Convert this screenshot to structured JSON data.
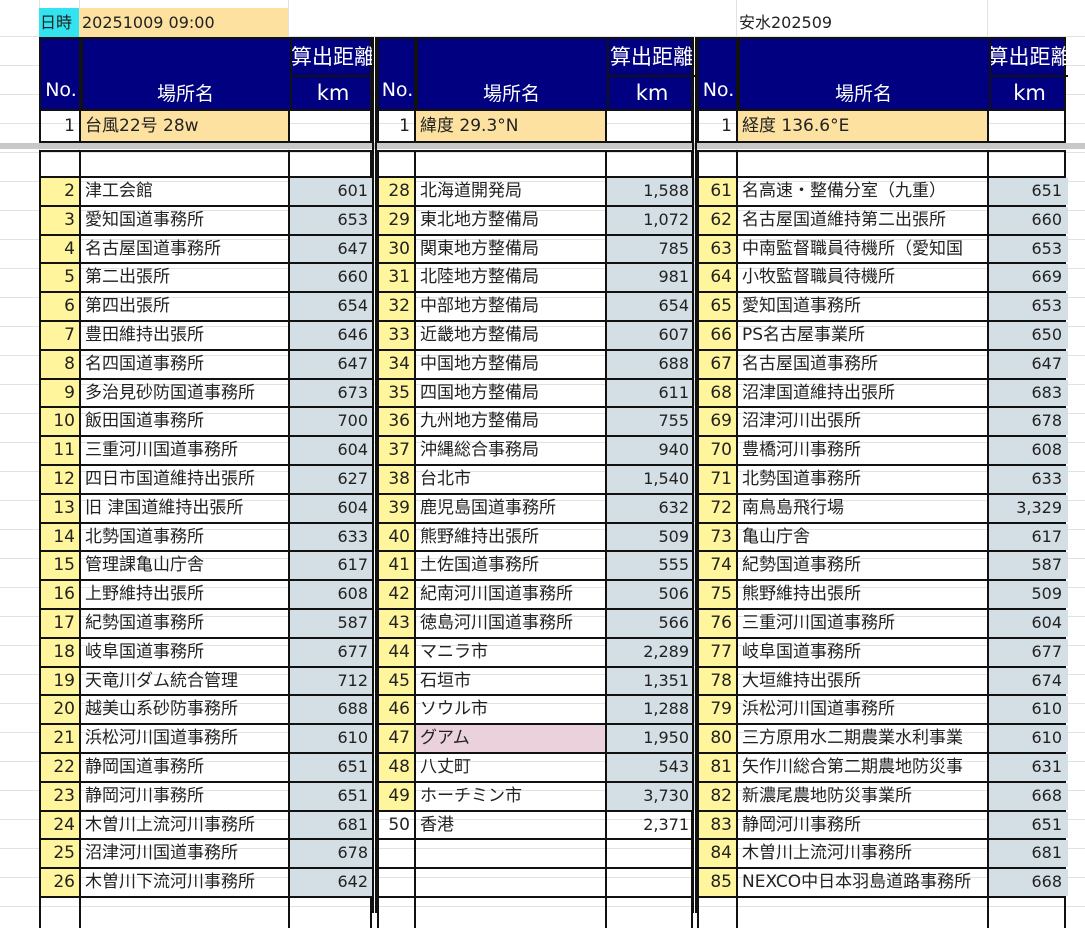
{
  "top": {
    "datetime_label": "日時",
    "datetime_value": "20251009  09:00",
    "note": "安水202509"
  },
  "header": {
    "no": "No.",
    "name": "場所名",
    "distance": "算出距離",
    "unit": "km"
  },
  "colors": {
    "header_bg": "#000080",
    "no_cell": "#fff59d",
    "km_cell": "#d3dee5",
    "info_cell": "#fce1a0",
    "highlight": "#ead1dc",
    "datetime_label_bg": "#33e3ef"
  },
  "blocks": [
    {
      "info": {
        "no": "1",
        "name": "台風22号 28w",
        "km": ""
      },
      "rows": [
        {
          "no": "2",
          "name": "津工会館",
          "km": "601"
        },
        {
          "no": "3",
          "name": "愛知国道事務所",
          "km": "653"
        },
        {
          "no": "4",
          "name": "名古屋国道事務所",
          "km": "647"
        },
        {
          "no": "5",
          "name": "第二出張所",
          "km": "660"
        },
        {
          "no": "6",
          "name": "第四出張所",
          "km": "654"
        },
        {
          "no": "7",
          "name": "豊田維持出張所",
          "km": "646"
        },
        {
          "no": "8",
          "name": "名四国道事務所",
          "km": "647"
        },
        {
          "no": "9",
          "name": "多治見砂防国道事務所",
          "km": "673"
        },
        {
          "no": "10",
          "name": "飯田国道事務所",
          "km": "700"
        },
        {
          "no": "11",
          "name": "三重河川国道事務所",
          "km": "604"
        },
        {
          "no": "12",
          "name": "四日市国道維持出張所",
          "km": "627"
        },
        {
          "no": "13",
          "name": "旧 津国道維持出張所",
          "km": "604"
        },
        {
          "no": "14",
          "name": "北勢国道事務所",
          "km": "633"
        },
        {
          "no": "15",
          "name": "管理課亀山庁舎",
          "km": "617"
        },
        {
          "no": "16",
          "name": "上野維持出張所",
          "km": "608"
        },
        {
          "no": "17",
          "name": "紀勢国道事務所",
          "km": "587"
        },
        {
          "no": "18",
          "name": "岐阜国道事務所",
          "km": "677"
        },
        {
          "no": "19",
          "name": "天竜川ダム統合管理",
          "km": "712"
        },
        {
          "no": "20",
          "name": "越美山系砂防事務所",
          "km": "688"
        },
        {
          "no": "21",
          "name": "浜松河川国道事務所",
          "km": "610"
        },
        {
          "no": "22",
          "name": "静岡国道事務所",
          "km": "651"
        },
        {
          "no": "23",
          "name": "静岡河川事務所",
          "km": "651"
        },
        {
          "no": "24",
          "name": "木曽川上流河川事務所",
          "km": "681"
        },
        {
          "no": "25",
          "name": "沼津河川国道事務所",
          "km": "678"
        },
        {
          "no": "26",
          "name": "木曽川下流河川事務所",
          "km": "642"
        }
      ]
    },
    {
      "info": {
        "no": "1",
        "name": "緯度 29.3°N",
        "km": ""
      },
      "rows": [
        {
          "no": "28",
          "name": "北海道開発局",
          "km": "1,588"
        },
        {
          "no": "29",
          "name": "東北地方整備局",
          "km": "1,072"
        },
        {
          "no": "30",
          "name": "関東地方整備局",
          "km": "785"
        },
        {
          "no": "31",
          "name": "北陸地方整備局",
          "km": "981"
        },
        {
          "no": "32",
          "name": "中部地方整備局",
          "km": "654"
        },
        {
          "no": "33",
          "name": "近畿地方整備局",
          "km": "607"
        },
        {
          "no": "34",
          "name": "中国地方整備局",
          "km": "688"
        },
        {
          "no": "35",
          "name": "四国地方整備局",
          "km": "611"
        },
        {
          "no": "36",
          "name": "九州地方整備局",
          "km": "755"
        },
        {
          "no": "37",
          "name": "沖縄総合事務局",
          "km": "940"
        },
        {
          "no": "38",
          "name": "台北市",
          "km": "1,540"
        },
        {
          "no": "39",
          "name": "鹿児島国道事務所",
          "km": "632"
        },
        {
          "no": "40",
          "name": "熊野維持出張所",
          "km": "509"
        },
        {
          "no": "41",
          "name": "土佐国道事務所",
          "km": "555"
        },
        {
          "no": "42",
          "name": "紀南河川国道事務所",
          "km": "506"
        },
        {
          "no": "43",
          "name": "徳島河川国道事務所",
          "km": "566"
        },
        {
          "no": "44",
          "name": "マニラ市",
          "km": "2,289"
        },
        {
          "no": "45",
          "name": "石垣市",
          "km": "1,351"
        },
        {
          "no": "46",
          "name": "ソウル市",
          "km": "1,288"
        },
        {
          "no": "47",
          "name": "グアム",
          "km": "1,950",
          "highlight": true
        },
        {
          "no": "48",
          "name": "八丈町",
          "km": "543"
        },
        {
          "no": "49",
          "name": "ホーチミン市",
          "km": "3,730"
        },
        {
          "no": "50",
          "name": "香港",
          "km": "2,371",
          "plain": true
        },
        {
          "no": "",
          "name": "",
          "km": "",
          "plain": true
        },
        {
          "no": "",
          "name": "",
          "km": "",
          "plain": true
        }
      ]
    },
    {
      "info": {
        "no": "1",
        "name": "経度 136.6°E",
        "km": ""
      },
      "rows": [
        {
          "no": "61",
          "name": "名高速・整備分室（九重）",
          "km": "651"
        },
        {
          "no": "62",
          "name": "名古屋国道維持第二出張所",
          "km": "660"
        },
        {
          "no": "63",
          "name": "中南監督職員待機所（愛知国",
          "km": "653"
        },
        {
          "no": "64",
          "name": "小牧監督職員待機所",
          "km": "669"
        },
        {
          "no": "65",
          "name": "愛知国道事務所",
          "km": "653"
        },
        {
          "no": "66",
          "name": "PS名古屋事業所",
          "km": "650"
        },
        {
          "no": "67",
          "name": "名古屋国道事務所",
          "km": "647"
        },
        {
          "no": "68",
          "name": "沼津国道維持出張所",
          "km": "683"
        },
        {
          "no": "69",
          "name": "沼津河川出張所",
          "km": "678"
        },
        {
          "no": "70",
          "name": "豊橋河川事務所",
          "km": "608"
        },
        {
          "no": "71",
          "name": "北勢国道事務所",
          "km": "633"
        },
        {
          "no": "72",
          "name": "南鳥島飛行場",
          "km": "3,329"
        },
        {
          "no": "73",
          "name": "亀山庁舎",
          "km": "617"
        },
        {
          "no": "74",
          "name": "紀勢国道事務所",
          "km": "587"
        },
        {
          "no": "75",
          "name": "熊野維持出張所",
          "km": "509"
        },
        {
          "no": "76",
          "name": "三重河川国道事務所",
          "km": "604"
        },
        {
          "no": "77",
          "name": "岐阜国道事務所",
          "km": "677"
        },
        {
          "no": "78",
          "name": "大垣維持出張所",
          "km": "674"
        },
        {
          "no": "79",
          "name": "浜松河川国道事務所",
          "km": "610"
        },
        {
          "no": "80",
          "name": "三方原用水二期農業水利事業",
          "km": "610"
        },
        {
          "no": "81",
          "name": "矢作川総合第二期農地防災事",
          "km": "631"
        },
        {
          "no": "82",
          "name": "新濃尾農地防災事業所",
          "km": "668"
        },
        {
          "no": "83",
          "name": "静岡河川事務所",
          "km": "651"
        },
        {
          "no": "84",
          "name": "木曽川上流河川事務所",
          "km": "681"
        },
        {
          "no": "85",
          "name": "NEXCO中日本羽島道路事務所",
          "km": "668"
        }
      ]
    }
  ]
}
